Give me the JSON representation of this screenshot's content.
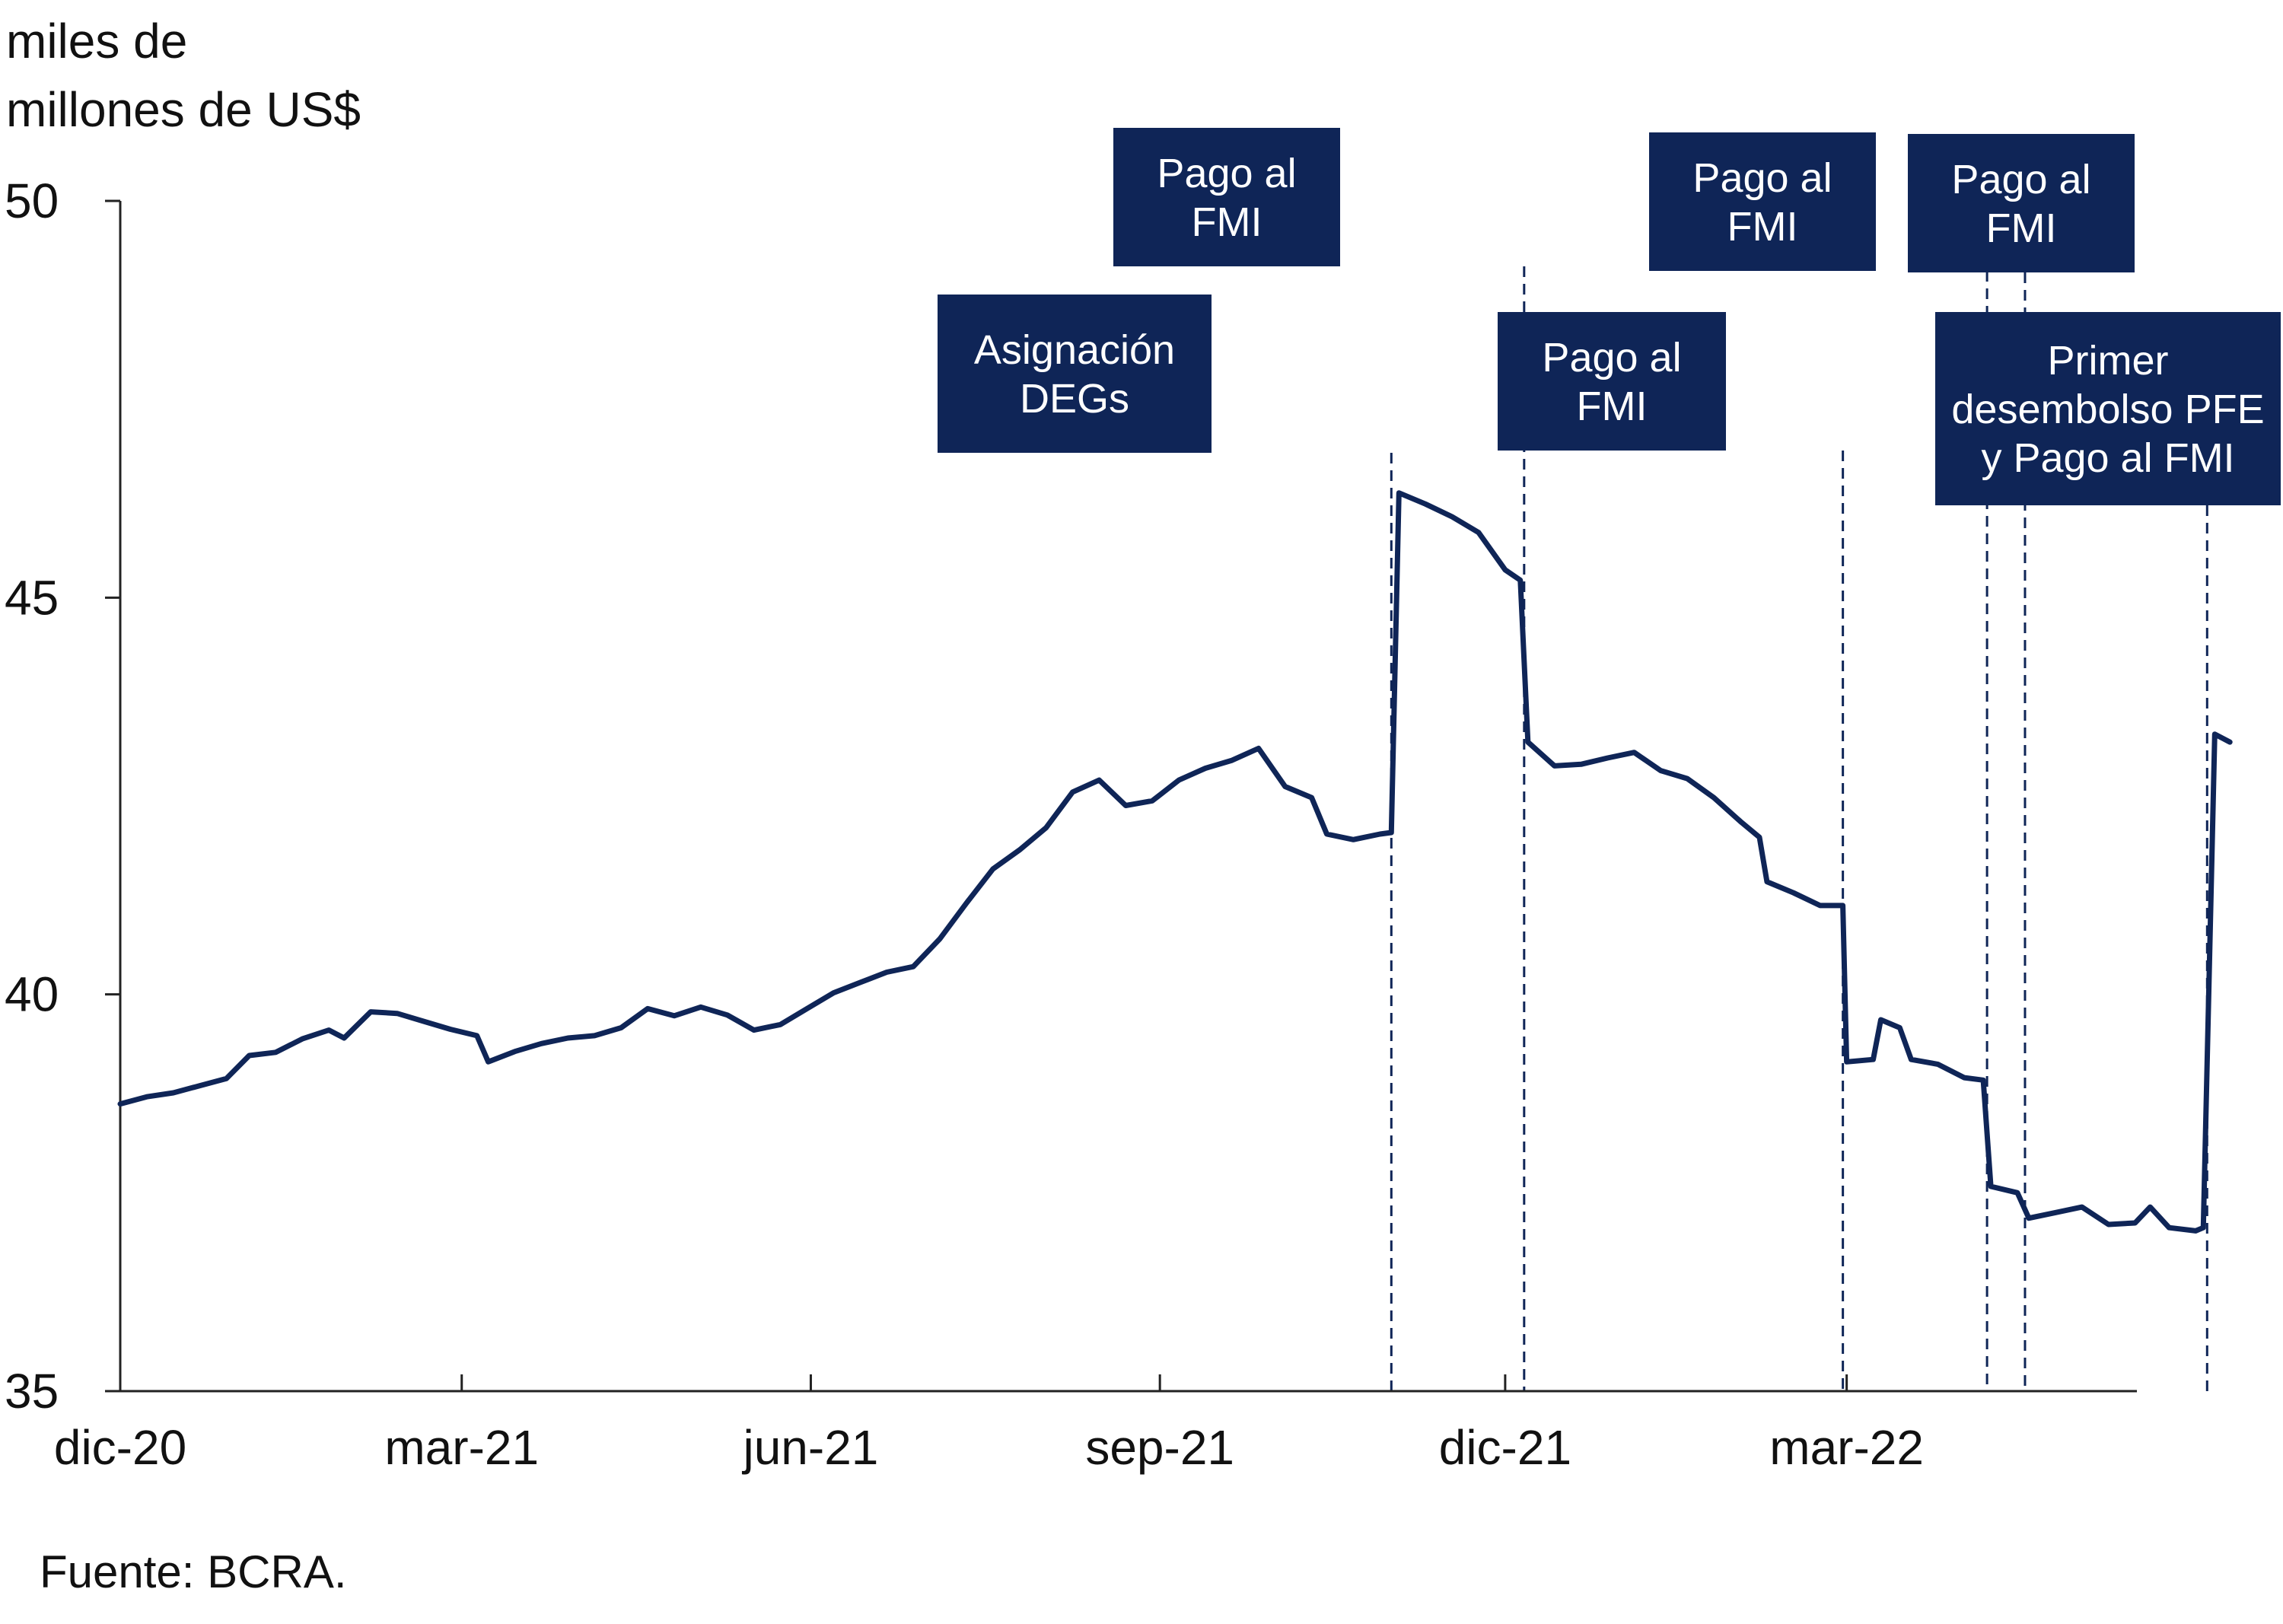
{
  "chart_data": {
    "type": "line",
    "title": "",
    "ylabel_lines": [
      "miles de",
      "millones de US$"
    ],
    "xlabel": "",
    "ylim": [
      35,
      50
    ],
    "yticks": [
      "35",
      "40",
      "45",
      "50"
    ],
    "xticks": [
      "dic-20",
      "mar-21",
      "jun-21",
      "sep-21",
      "dic-21",
      "mar-22"
    ],
    "grid": false,
    "source": "Fuente: BCRA.",
    "line_color": "#0f2557",
    "annotation_color": "#0f2557",
    "x_start": "2020-12-01",
    "series": [
      {
        "points": [
          [
            "2020-12-01",
            38.62
          ],
          [
            "2020-12-08",
            38.71
          ],
          [
            "2020-12-15",
            38.76
          ],
          [
            "2020-12-22",
            38.85
          ],
          [
            "2020-12-29",
            38.94
          ],
          [
            "2021-01-04",
            39.23
          ],
          [
            "2021-01-11",
            39.27
          ],
          [
            "2021-01-18",
            39.44
          ],
          [
            "2021-01-25",
            39.55
          ],
          [
            "2021-01-29",
            39.45
          ],
          [
            "2021-02-05",
            39.78
          ],
          [
            "2021-02-12",
            39.76
          ],
          [
            "2021-02-19",
            39.66
          ],
          [
            "2021-02-26",
            39.56
          ],
          [
            "2021-03-05",
            39.48
          ],
          [
            "2021-03-08",
            39.15
          ],
          [
            "2021-03-15",
            39.28
          ],
          [
            "2021-03-22",
            39.38
          ],
          [
            "2021-03-29",
            39.45
          ],
          [
            "2021-04-05",
            39.48
          ],
          [
            "2021-04-12",
            39.58
          ],
          [
            "2021-04-19",
            39.82
          ],
          [
            "2021-04-26",
            39.73
          ],
          [
            "2021-05-03",
            39.84
          ],
          [
            "2021-05-10",
            39.74
          ],
          [
            "2021-05-17",
            39.55
          ],
          [
            "2021-05-24",
            39.62
          ],
          [
            "2021-05-31",
            39.82
          ],
          [
            "2021-06-07",
            40.02
          ],
          [
            "2021-06-14",
            40.15
          ],
          [
            "2021-06-21",
            40.28
          ],
          [
            "2021-06-28",
            40.35
          ],
          [
            "2021-07-05",
            40.7
          ],
          [
            "2021-07-12",
            41.15
          ],
          [
            "2021-07-19",
            41.58
          ],
          [
            "2021-07-26",
            41.82
          ],
          [
            "2021-08-02",
            42.1
          ],
          [
            "2021-08-09",
            42.55
          ],
          [
            "2021-08-16",
            42.7
          ],
          [
            "2021-08-23",
            42.38
          ],
          [
            "2021-08-30",
            42.44
          ],
          [
            "2021-09-06",
            42.7
          ],
          [
            "2021-09-13",
            42.85
          ],
          [
            "2021-09-20",
            42.95
          ],
          [
            "2021-09-27",
            43.1
          ],
          [
            "2021-10-04",
            42.62
          ],
          [
            "2021-10-11",
            42.48
          ],
          [
            "2021-10-15",
            42.02
          ],
          [
            "2021-10-22",
            41.95
          ],
          [
            "2021-10-29",
            42.02
          ],
          [
            "2021-11-01",
            42.04
          ],
          [
            "2021-11-03",
            46.32
          ],
          [
            "2021-11-10",
            46.18
          ],
          [
            "2021-11-17",
            46.02
          ],
          [
            "2021-11-24",
            45.82
          ],
          [
            "2021-12-01",
            45.35
          ],
          [
            "2021-12-05",
            45.22
          ],
          [
            "2021-12-07",
            43.18
          ],
          [
            "2021-12-14",
            42.88
          ],
          [
            "2021-12-21",
            42.9
          ],
          [
            "2021-12-28",
            42.98
          ],
          [
            "2022-01-04",
            43.05
          ],
          [
            "2022-01-11",
            42.82
          ],
          [
            "2022-01-18",
            42.72
          ],
          [
            "2022-01-25",
            42.48
          ],
          [
            "2022-02-01",
            42.18
          ],
          [
            "2022-02-06",
            41.98
          ],
          [
            "2022-02-08",
            41.42
          ],
          [
            "2022-02-15",
            41.28
          ],
          [
            "2022-02-22",
            41.12
          ],
          [
            "2022-02-28",
            41.12
          ],
          [
            "2022-03-01",
            39.15
          ],
          [
            "2022-03-08",
            39.18
          ],
          [
            "2022-03-10",
            39.68
          ],
          [
            "2022-03-15",
            39.58
          ],
          [
            "2022-03-18",
            39.18
          ],
          [
            "2022-03-25",
            39.12
          ],
          [
            "2022-04-01",
            38.95
          ],
          [
            "2022-04-06",
            38.92
          ],
          [
            "2022-04-08",
            37.58
          ],
          [
            "2022-04-15",
            37.5
          ],
          [
            "2022-04-18",
            37.18
          ],
          [
            "2022-04-25",
            37.25
          ],
          [
            "2022-05-02",
            37.32
          ],
          [
            "2022-05-09",
            37.1
          ],
          [
            "2022-05-16",
            37.12
          ],
          [
            "2022-05-20",
            37.32
          ],
          [
            "2022-05-25",
            37.06
          ],
          [
            "2022-06-01",
            37.02
          ],
          [
            "2022-06-03",
            37.06
          ],
          [
            "2022-06-06",
            43.28
          ],
          [
            "2022-06-10",
            43.18
          ]
        ]
      }
    ],
    "annotations": [
      {
        "label_lines": [
          "Asignación",
          "DEGs"
        ],
        "date": "2021-11-01"
      },
      {
        "label_lines": [
          "Pago al",
          "FMI"
        ],
        "date": "2021-12-06"
      },
      {
        "label_lines": [
          "Pago al",
          "FMI"
        ],
        "date": "2022-02-28"
      },
      {
        "label_lines": [
          "Pago al",
          "FMI"
        ],
        "date": "2022-04-07"
      },
      {
        "label_lines": [
          "Pago al",
          "FMI"
        ],
        "date": "2022-04-17"
      },
      {
        "label_lines": [
          "Primer",
          "desembolso PFE",
          "y Pago al FMI"
        ],
        "date": "2022-06-04"
      }
    ]
  }
}
